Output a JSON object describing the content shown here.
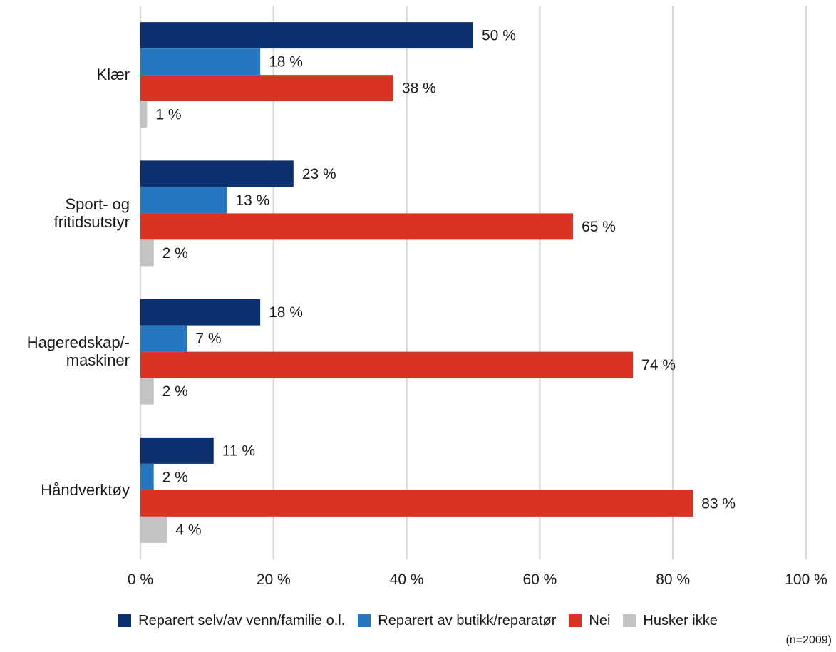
{
  "chart_data": {
    "type": "bar",
    "orientation": "horizontal",
    "categories": [
      "Klær",
      "Sport- og fritidsutstyr",
      "Hageredskap/- maskiner",
      "Håndverktøy"
    ],
    "category_lines": [
      [
        "Klær"
      ],
      [
        "Sport- og",
        "fritidsutstyr"
      ],
      [
        "Hageredskap/-",
        "maskiner"
      ],
      [
        "Håndverktøy"
      ]
    ],
    "series": [
      {
        "name": "Reparert selv/av venn/familie o.l.",
        "color": "#0b3170",
        "values": [
          50,
          23,
          18,
          11
        ],
        "labels": [
          "50 %",
          "23 %",
          "18 %",
          "11 %"
        ]
      },
      {
        "name": "Reparert av butikk/reparatør",
        "color": "#2677c0",
        "values": [
          18,
          13,
          7,
          2
        ],
        "labels": [
          "18 %",
          "13 %",
          "7 %",
          "2 %"
        ]
      },
      {
        "name": "Nei",
        "color": "#d93323",
        "values": [
          38,
          65,
          74,
          83
        ],
        "labels": [
          "38 %",
          "65 %",
          "74 %",
          "83 %"
        ]
      },
      {
        "name": "Husker ikke",
        "color": "#c3c3c3",
        "values": [
          1,
          2,
          2,
          4
        ],
        "labels": [
          "1 %",
          "2 %",
          "2 %",
          "4 %"
        ]
      }
    ],
    "xlim": [
      0,
      100
    ],
    "xticks": [
      0,
      20,
      40,
      60,
      80,
      100
    ],
    "xtick_labels": [
      "0 %",
      "20 %",
      "40 %",
      "60 %",
      "80 %",
      "100 %"
    ],
    "grid": "vertical",
    "legend_position": "bottom",
    "note": "(n=2009)"
  }
}
